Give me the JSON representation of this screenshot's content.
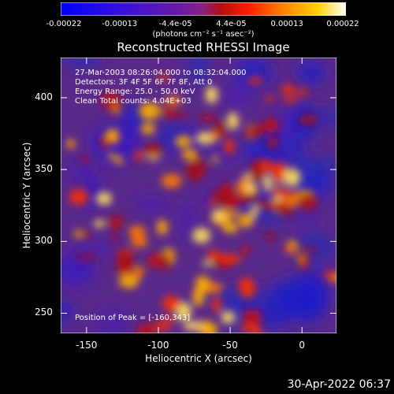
{
  "chart_data": {
    "type": "heatmap",
    "title": "Reconstructed RHESSI Image",
    "xlabel": "Heliocentric X (arcsec)",
    "ylabel": "Heliocentric Y (arcsec)",
    "xlim": [
      -168,
      24
    ],
    "ylim": [
      236,
      428
    ],
    "x_ticks": [
      "-150",
      "-100",
      "-50",
      "0"
    ],
    "x_tick_values": [
      -150,
      -100,
      -50,
      0
    ],
    "y_ticks": [
      "250",
      "300",
      "350",
      "400"
    ],
    "y_tick_values": [
      250,
      300,
      350,
      400
    ],
    "colorbar": {
      "ticks": [
        "-0.00022",
        "-0.00013",
        "-4.4e-05",
        "4.4e-05",
        "0.00013",
        "0.00022"
      ],
      "units": "(photons cm⁻² s⁻¹ asec⁻²)",
      "range": [
        -0.00022,
        0.00022
      ]
    },
    "annotations": {
      "time": "27-Mar-2003 08:26:04.000 to 08:32:04.000",
      "detectors": "Detectors: 3F 4F 5F 6F 7F 8F, Att 0",
      "energy": "Energy Range: 25.0 - 50.0 keV",
      "method": "Clean     Total counts: 4.04E+03",
      "peak": "Position of Peak = [-160,343]"
    },
    "peak_position": [
      -160,
      343
    ]
  },
  "footer": {
    "timestamp": "30-Apr-2022 06:37"
  }
}
